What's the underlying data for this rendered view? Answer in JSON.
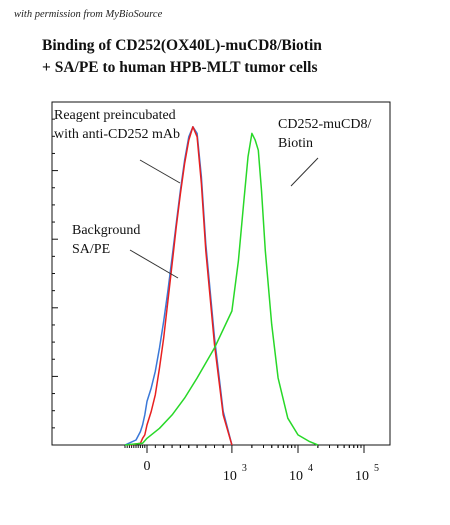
{
  "header": {
    "watermark": "with permission from MyBioSource"
  },
  "chart_data": {
    "type": "line",
    "title": "Binding of CD252(OX40L)-muCD8/Biotin + SA/PE to human HPB-MLT tumor cells",
    "title_lines": [
      "Binding of CD252(OX40L)-muCD8/Biotin",
      "+ SA/PE to human HPB-MLT tumor cells"
    ],
    "xlabel": "",
    "ylabel": "",
    "x_scale": "biexponential",
    "x_ticks": [
      {
        "value": 0,
        "label": "0"
      },
      {
        "value": 1000,
        "base": "10",
        "exp": "3"
      },
      {
        "value": 10000,
        "base": "10",
        "exp": "4"
      },
      {
        "value": 100000,
        "base": "10",
        "exp": "5"
      }
    ],
    "xlim": [
      -1000,
      200000
    ],
    "ylim": [
      0,
      100
    ],
    "grid": false,
    "annotations": [
      {
        "lines": [
          "Reagent preincubated",
          "with anti-CD252 mAb"
        ],
        "series": "Reagent preincubated with anti-CD252 mAb"
      },
      {
        "lines": [
          "Background",
          "SA/PE"
        ],
        "series": "Background SA/PE"
      },
      {
        "lines": [
          "CD252-muCD8/",
          "Biotin"
        ],
        "series": "CD252-muCD8/Biotin"
      }
    ],
    "series": [
      {
        "name": "Background SA/PE",
        "color": "#3a78d8",
        "x": [
          -1000,
          -500,
          -300,
          -200,
          -100,
          0,
          50,
          100,
          150,
          200,
          250,
          300,
          350,
          400,
          450,
          500,
          550,
          600,
          650,
          700,
          800,
          900,
          1000
        ],
        "y": [
          0,
          1.5,
          4,
          6,
          9,
          13,
          17,
          22,
          29,
          37,
          46,
          56,
          66,
          76,
          85,
          92,
          95,
          93,
          80,
          60,
          32,
          10,
          0
        ]
      },
      {
        "name": "Reagent preincubated with anti-CD252 mAb",
        "color": "#e82020",
        "x": [
          -800,
          -300,
          -200,
          -100,
          0,
          50,
          100,
          150,
          200,
          250,
          300,
          350,
          400,
          450,
          500,
          550,
          600,
          650,
          700,
          800,
          900,
          1000
        ],
        "y": [
          0,
          0.5,
          2,
          3,
          6,
          10,
          15,
          23,
          32,
          43,
          54,
          65,
          75,
          84,
          91,
          95,
          92,
          78,
          58,
          30,
          9,
          0
        ]
      },
      {
        "name": "CD252-muCD8/Biotin",
        "color": "#28d828",
        "x": [
          -1000,
          -200,
          0,
          150,
          300,
          450,
          600,
          800,
          1000,
          1250,
          1500,
          1750,
          2000,
          2250,
          2500,
          2800,
          3200,
          4000,
          5000,
          7000,
          10000,
          15000,
          20000
        ],
        "y": [
          0,
          0.5,
          2,
          5,
          9,
          14,
          20,
          29,
          40,
          55,
          72,
          86,
          93,
          91,
          88,
          76,
          58,
          36,
          20,
          8,
          3,
          1,
          0
        ]
      }
    ]
  }
}
